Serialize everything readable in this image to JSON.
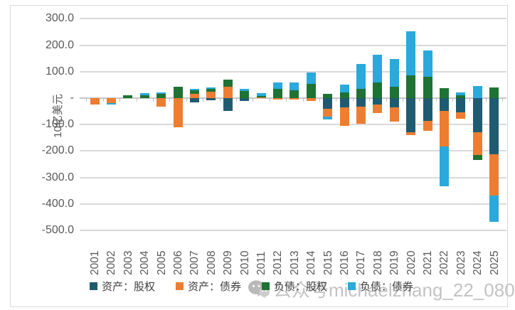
{
  "chart_data": {
    "type": "bar",
    "variant": "stacked-column",
    "title": "",
    "ylabel": "10亿美元",
    "xlabel": "",
    "ylim": [
      -500,
      300
    ],
    "ytick_step": 100,
    "grid": true,
    "legend_position": "bottom",
    "yticks": [
      {
        "value": 300,
        "label": "300.0"
      },
      {
        "value": 200,
        "label": "200.0"
      },
      {
        "value": 100,
        "label": "100.0"
      },
      {
        "value": 0,
        "label": "-"
      },
      {
        "value": -100,
        "label": "-100.0"
      },
      {
        "value": -200,
        "label": "-200.0"
      },
      {
        "value": -300,
        "label": "-300.0"
      },
      {
        "value": -400,
        "label": "-400.0"
      },
      {
        "value": -500,
        "label": "-500.0"
      }
    ],
    "categories": [
      "2001",
      "2002",
      "2003",
      "2004",
      "2005",
      "2006",
      "2007",
      "2008",
      "2009",
      "2010",
      "2011",
      "2012",
      "2013",
      "2014",
      "2015",
      "2016",
      "2017",
      "2018",
      "2019",
      "2020",
      "2021",
      "2022",
      "2023",
      "2024",
      "2025"
    ],
    "series": [
      {
        "name": "资产：股权",
        "color": "#1F5B70",
        "values": [
          0,
          0,
          0,
          0,
          0,
          0,
          -17,
          -7,
          -49,
          -10,
          0,
          0,
          0,
          0,
          -40,
          -35,
          -33,
          -25,
          -35,
          -128,
          -85,
          -48,
          -55,
          -128,
          -212
        ]
      },
      {
        "name": "资产：债券",
        "color": "#ED7D31",
        "values": [
          -25,
          -20,
          0,
          0,
          -31,
          -110,
          15,
          24,
          43,
          0,
          4,
          -6,
          -5,
          -10,
          -31,
          -71,
          -64,
          -31,
          -55,
          -12,
          -40,
          -136,
          -22,
          -88,
          -156
        ]
      },
      {
        "name": "负债：股权",
        "color": "#1E7233",
        "values": [
          0,
          0,
          11,
          12,
          15,
          43,
          14,
          10,
          28,
          28,
          5,
          34,
          30,
          54,
          15,
          22,
          36,
          60,
          42,
          86,
          80,
          38,
          11,
          -19,
          40
        ]
      },
      {
        "name": "负债：债券",
        "color": "#29A9DC",
        "values": [
          0,
          -5,
          0,
          6,
          6,
          0,
          6,
          6,
          0,
          6,
          9,
          25,
          28,
          43,
          -11,
          28,
          94,
          103,
          107,
          168,
          100,
          -149,
          11,
          47,
          -100
        ]
      }
    ]
  },
  "watermark": {
    "icon": "wechat-icon",
    "text": "公众号michaelzhang_22_0808"
  },
  "colors": {
    "grid": "#D9D9D9",
    "zero_axis": "#C6C6C6",
    "axis_text": "#595959",
    "watermark": "#C3C3C3",
    "border": "#D9D9D9",
    "background": "#FFFFFF"
  }
}
